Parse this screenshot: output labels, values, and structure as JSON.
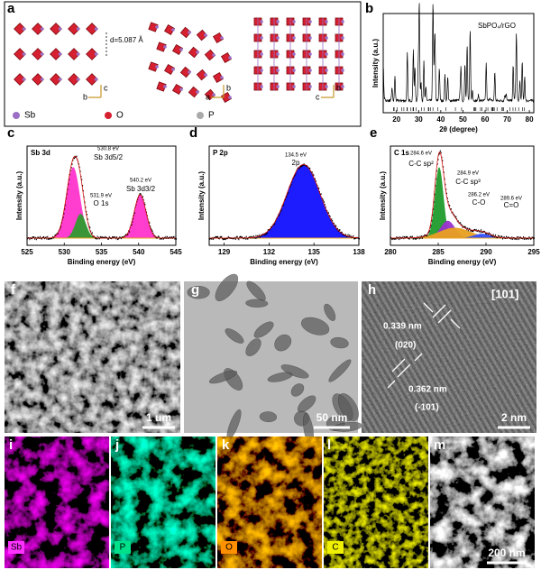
{
  "panel_labels": [
    "a",
    "b",
    "c",
    "d",
    "e",
    "f",
    "g",
    "h",
    "i",
    "j",
    "k",
    "l",
    "m"
  ],
  "structure": {
    "spacing": "d=5.087 Å",
    "legend": [
      "Sb",
      "O",
      "P"
    ],
    "axes": [
      [
        "b",
        "c"
      ],
      [
        "a",
        "b"
      ],
      [
        "c",
        "b"
      ]
    ]
  },
  "chart_data": [
    {
      "type": "xrd",
      "tag": "SbPO₄/rGO",
      "xlabel": "2θ (degree)",
      "ylabel": "Intensity (a.u.)",
      "xlim": [
        14,
        82
      ],
      "xticks": [
        20,
        30,
        40,
        50,
        60,
        70,
        80
      ],
      "annotations": []
    },
    {
      "type": "xps",
      "tag": "Sb 3d",
      "xlabel": "Binding energy (eV)",
      "ylabel": "Intensity (a.u.)",
      "xlim": [
        525,
        545
      ],
      "xticks": [
        525,
        530,
        535,
        540,
        545
      ],
      "annotations": [
        "530.8 eV",
        "Sb 3d5/2",
        "531.9 eV",
        "O 1s",
        "540.2 eV",
        "Sb 3d3/2"
      ]
    },
    {
      "type": "xps",
      "tag": "P 2p",
      "xlabel": "Binding energy (eV)",
      "ylabel": "Intensity (a.u.)",
      "xlim": [
        128,
        138
      ],
      "xticks": [
        129,
        132,
        135,
        138
      ],
      "annotations": [
        "134.5 eV",
        "2p"
      ]
    },
    {
      "type": "xps",
      "tag": "C 1s",
      "xlabel": "Binding energy (eV)",
      "ylabel": "Intensity (a.u.)",
      "xlim": [
        280,
        295
      ],
      "xticks": [
        280,
        285,
        290,
        295
      ],
      "annotations": [
        "284.6 eV",
        "C-C sp²",
        "284.9 eV",
        "C-C sp³",
        "286.2 eV",
        "C-O",
        "289.6 eV",
        "C=O"
      ]
    }
  ],
  "micrographs": {
    "f": {
      "scale": "1 um"
    },
    "g": {
      "scale": "50 nm"
    },
    "h": {
      "zone": "[101]",
      "spacing1": "0.339 nm",
      "plane1": "(020)",
      "spacing2": "0.362 nm",
      "plane2": "(-101)",
      "scale": "2 nm"
    }
  },
  "mapping": {
    "elements": [
      "Sb",
      "P",
      "O",
      "C"
    ],
    "scale": "200 nm"
  }
}
